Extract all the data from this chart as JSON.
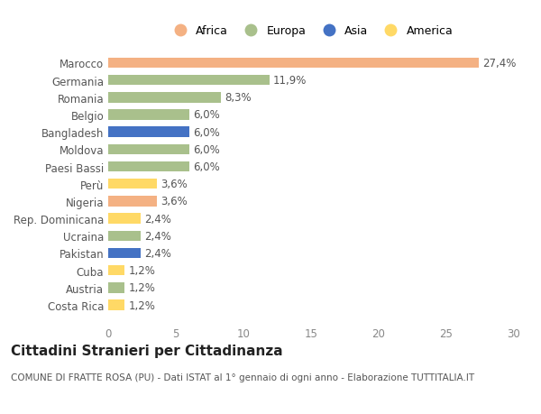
{
  "categories": [
    "Costa Rica",
    "Austria",
    "Cuba",
    "Pakistan",
    "Ucraina",
    "Rep. Dominicana",
    "Nigeria",
    "Perù",
    "Paesi Bassi",
    "Moldova",
    "Bangladesh",
    "Belgio",
    "Romania",
    "Germania",
    "Marocco"
  ],
  "values": [
    1.2,
    1.2,
    1.2,
    2.4,
    2.4,
    2.4,
    3.6,
    3.6,
    6.0,
    6.0,
    6.0,
    6.0,
    8.3,
    11.9,
    27.4
  ],
  "labels": [
    "1,2%",
    "1,2%",
    "1,2%",
    "2,4%",
    "2,4%",
    "2,4%",
    "3,6%",
    "3,6%",
    "6,0%",
    "6,0%",
    "6,0%",
    "6,0%",
    "8,3%",
    "11,9%",
    "27,4%"
  ],
  "continents": [
    "America",
    "Europa",
    "America",
    "Asia",
    "Europa",
    "America",
    "Africa",
    "America",
    "Europa",
    "Europa",
    "Asia",
    "Europa",
    "Europa",
    "Europa",
    "Africa"
  ],
  "colors": {
    "Africa": "#F4B183",
    "Europa": "#A9C08C",
    "Asia": "#4472C4",
    "America": "#FFD966"
  },
  "xlim": [
    0,
    30
  ],
  "xticks": [
    0,
    5,
    10,
    15,
    20,
    25,
    30
  ],
  "title": "Cittadini Stranieri per Cittadinanza",
  "subtitle": "COMUNE DI FRATTE ROSA (PU) - Dati ISTAT al 1° gennaio di ogni anno - Elaborazione TUTTITALIA.IT",
  "background_color": "#ffffff",
  "bar_height": 0.6,
  "label_fontsize": 8.5,
  "ytick_fontsize": 8.5,
  "xtick_fontsize": 8.5,
  "title_fontsize": 11,
  "subtitle_fontsize": 7.5,
  "legend_order": [
    "Africa",
    "Europa",
    "Asia",
    "America"
  ]
}
